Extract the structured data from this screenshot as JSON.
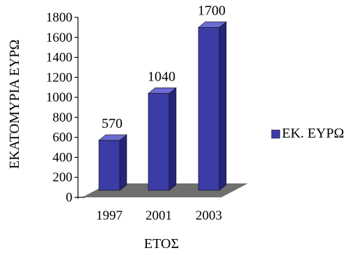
{
  "chart_data": {
    "type": "bar",
    "categories": [
      "1997",
      "2001",
      "2003"
    ],
    "series": [
      {
        "name": "ΕΚ. ΕΥΡΩ",
        "values": [
          570,
          1040,
          1700
        ]
      }
    ],
    "data_labels": [
      "570",
      "1040",
      "1700"
    ],
    "ylabel": "ΕΚΑΤΟΜΥΡΙΑ ΕΥΡΩ",
    "xlabel": "ΕΤΟΣ",
    "ylim": [
      0,
      1800
    ],
    "y_ticks": [
      "0",
      "200",
      "400",
      "600",
      "800",
      "1000",
      "1200",
      "1400",
      "1600",
      "1800"
    ],
    "grid": false,
    "legend_position": "right",
    "style": "3d-column",
    "colors": {
      "bar_front": "#3c3ca6",
      "bar_side": "#25257a",
      "bar_top": "#6b6bd2",
      "floor": "#6f6f6f",
      "axis": "#000000"
    }
  }
}
